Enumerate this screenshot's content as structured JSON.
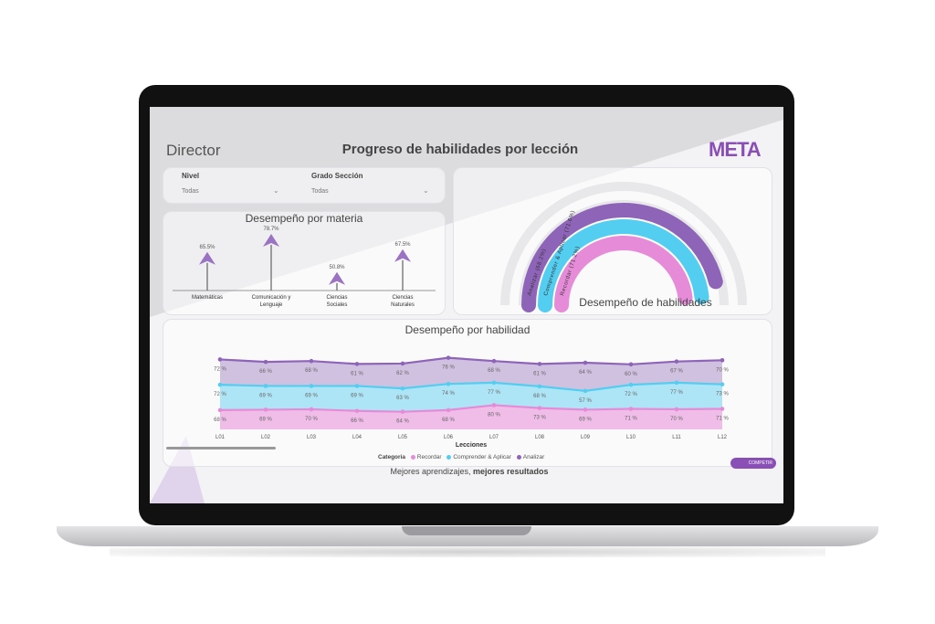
{
  "header": {
    "role": "Director",
    "title": "Progreso de habilidades por lección",
    "logo": "META"
  },
  "filters": [
    {
      "label": "Nivel",
      "value": "Todas"
    },
    {
      "label": "Grado Sección",
      "value": "Todas"
    }
  ],
  "footer": {
    "tagline_part1": "Mejores aprendizajes, ",
    "tagline_part2": "mejores resultados",
    "brand": "COMPETIR"
  },
  "colors": {
    "recordar": "#e58bd8",
    "comprender": "#53cdf0",
    "analizar": "#8e64b8"
  },
  "chart_data": [
    {
      "type": "bar",
      "title": "Desempeño por materia",
      "categories": [
        "Matemáticas",
        "Comunicación y Lenguaje",
        "Ciencias Sociales",
        "Ciencias Naturales"
      ],
      "values": [
        65.5,
        78.7,
        50.8,
        67.5
      ],
      "value_labels": [
        "65.5%",
        "78.7%",
        "50.8%",
        "67.5%"
      ]
    },
    {
      "type": "bar",
      "title": "Desempeño de habilidades",
      "categories": [
        "Analizar",
        "Comprender & Aplicar",
        "Recordar"
      ],
      "values": [
        68.2,
        71.6,
        71.2
      ],
      "labels": [
        "Analizar (68.2%)",
        "Comprender & Aplicar (71.6%)",
        "Recordar (71.2%)"
      ]
    },
    {
      "type": "area",
      "title": "Desempeño por habilidad",
      "xlabel": "Lecciones",
      "categories": [
        "L01",
        "L02",
        "L03",
        "L04",
        "L05",
        "L06",
        "L07",
        "L08",
        "L09",
        "L10",
        "L11",
        "L12"
      ],
      "legend_title": "Categoria",
      "series": [
        {
          "name": "Recordar",
          "values": [
            68,
            69,
            70,
            66,
            64,
            68,
            80,
            73,
            69,
            71,
            70,
            71
          ]
        },
        {
          "name": "Comprender & Aplicar",
          "values": [
            72,
            69,
            69,
            69,
            63,
            74,
            77,
            68,
            57,
            72,
            77,
            73
          ]
        },
        {
          "name": "Analizar",
          "values": [
            72,
            66,
            68,
            61,
            62,
            76,
            68,
            61,
            64,
            60,
            67,
            70
          ]
        }
      ]
    }
  ]
}
